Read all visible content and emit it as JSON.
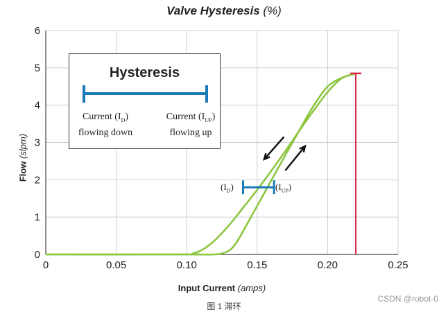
{
  "chart_data": {
    "type": "line",
    "title": "Valve Hysteresis",
    "title_unit": "(%)",
    "xlabel": "Input Current",
    "xlabel_unit": "(amps)",
    "ylabel": "Flow",
    "ylabel_unit": "(slpm)",
    "xlim": [
      0,
      0.25
    ],
    "ylim": [
      0,
      6
    ],
    "xticks": [
      "0",
      "0.05",
      "0.10",
      "0.15",
      "0.20",
      "0.25"
    ],
    "yticks": [
      "0",
      "1",
      "2",
      "3",
      "4",
      "5",
      "6"
    ],
    "grid": true,
    "series": [
      {
        "name": "Current (I_UP) flowing up",
        "color": "#8cc63f",
        "x": [
          0,
          0.1,
          0.12,
          0.127,
          0.131,
          0.134,
          0.137,
          0.14,
          0.15,
          0.16,
          0.17,
          0.18,
          0.19,
          0.2,
          0.21,
          0.22
        ],
        "y": [
          0,
          0,
          0,
          0.05,
          0.13,
          0.25,
          0.42,
          0.62,
          1.3,
          1.98,
          2.66,
          3.33,
          3.98,
          4.5,
          4.73,
          4.85
        ]
      },
      {
        "name": "Current (I_D) flowing down",
        "color": "#8cc63f",
        "x": [
          0.22,
          0.21,
          0.2,
          0.19,
          0.18,
          0.17,
          0.16,
          0.15,
          0.14,
          0.13,
          0.12,
          0.113,
          0.108,
          0.104,
          0.1,
          0.0
        ],
        "y": [
          4.85,
          4.72,
          4.35,
          3.85,
          3.32,
          2.77,
          2.24,
          1.73,
          1.25,
          0.78,
          0.38,
          0.17,
          0.07,
          0.02,
          0,
          0
        ]
      }
    ],
    "annotations": {
      "max_marker": {
        "x": 0.22,
        "y": 4.85,
        "color": "#d6263e"
      },
      "hysteresis_band": {
        "x_down": 0.14,
        "x_up": 0.162,
        "y": 1.8,
        "color": "#1a7ab8"
      },
      "arrow_down": {
        "from": [
          0.169,
          3.15
        ],
        "to": [
          0.155,
          2.55
        ]
      },
      "arrow_up": {
        "from": [
          0.17,
          2.25
        ],
        "to": [
          0.184,
          2.9
        ]
      }
    },
    "legend": {
      "title": "Hysteresis",
      "left_line1": "Current (I",
      "left_sub": "D",
      "left_line1_end": ")",
      "left_line2": "flowing down",
      "right_line1": "Current (I",
      "right_sub": "UP",
      "right_line1_end": ")",
      "right_line2": "flowing up"
    }
  },
  "labels": {
    "ann_down_main": "(I",
    "ann_down_sub": "D",
    "ann_down_end": ")",
    "ann_up_main": "(I",
    "ann_up_sub": "UP",
    "ann_up_end": ")"
  },
  "caption": "图 1 滞环",
  "watermark": "CSDN @robot-0"
}
